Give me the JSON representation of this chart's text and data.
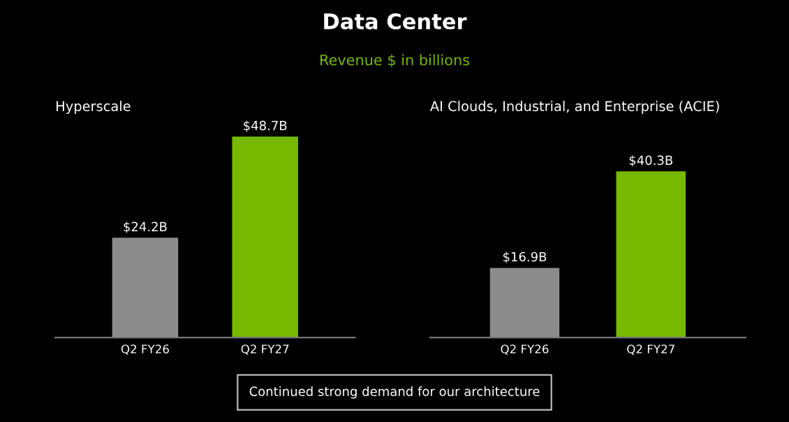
{
  "chart_data": [
    {
      "type": "other",
      "title": "Data Center",
      "subtitle": "Revenue $ in billions",
      "annotations": [
        "Continued strong demand for our architecture"
      ]
    },
    {
      "type": "bar",
      "title": "Hyperscale",
      "categories": [
        "Q2 FY26",
        "Q2 FY27"
      ],
      "values": [
        24.2,
        48.7
      ],
      "colors": [
        "#8c8c8c",
        "#76b900"
      ],
      "value_labels": [
        "$24.2B",
        "$48.7B"
      ],
      "tick_labels": "x",
      "grid": false,
      "legend": false
    },
    {
      "type": "bar",
      "title": "AI Clouds, Industrial, and Enterprise (ACIE)",
      "categories": [
        "Q2 FY26",
        "Q2 FY27"
      ],
      "values": [
        16.9,
        40.3
      ],
      "colors": [
        "#8c8c8c",
        "#76b900"
      ],
      "value_labels": [
        "$16.9B",
        "$40.3B"
      ],
      "tick_labels": "x",
      "grid": false,
      "legend": false
    }
  ]
}
